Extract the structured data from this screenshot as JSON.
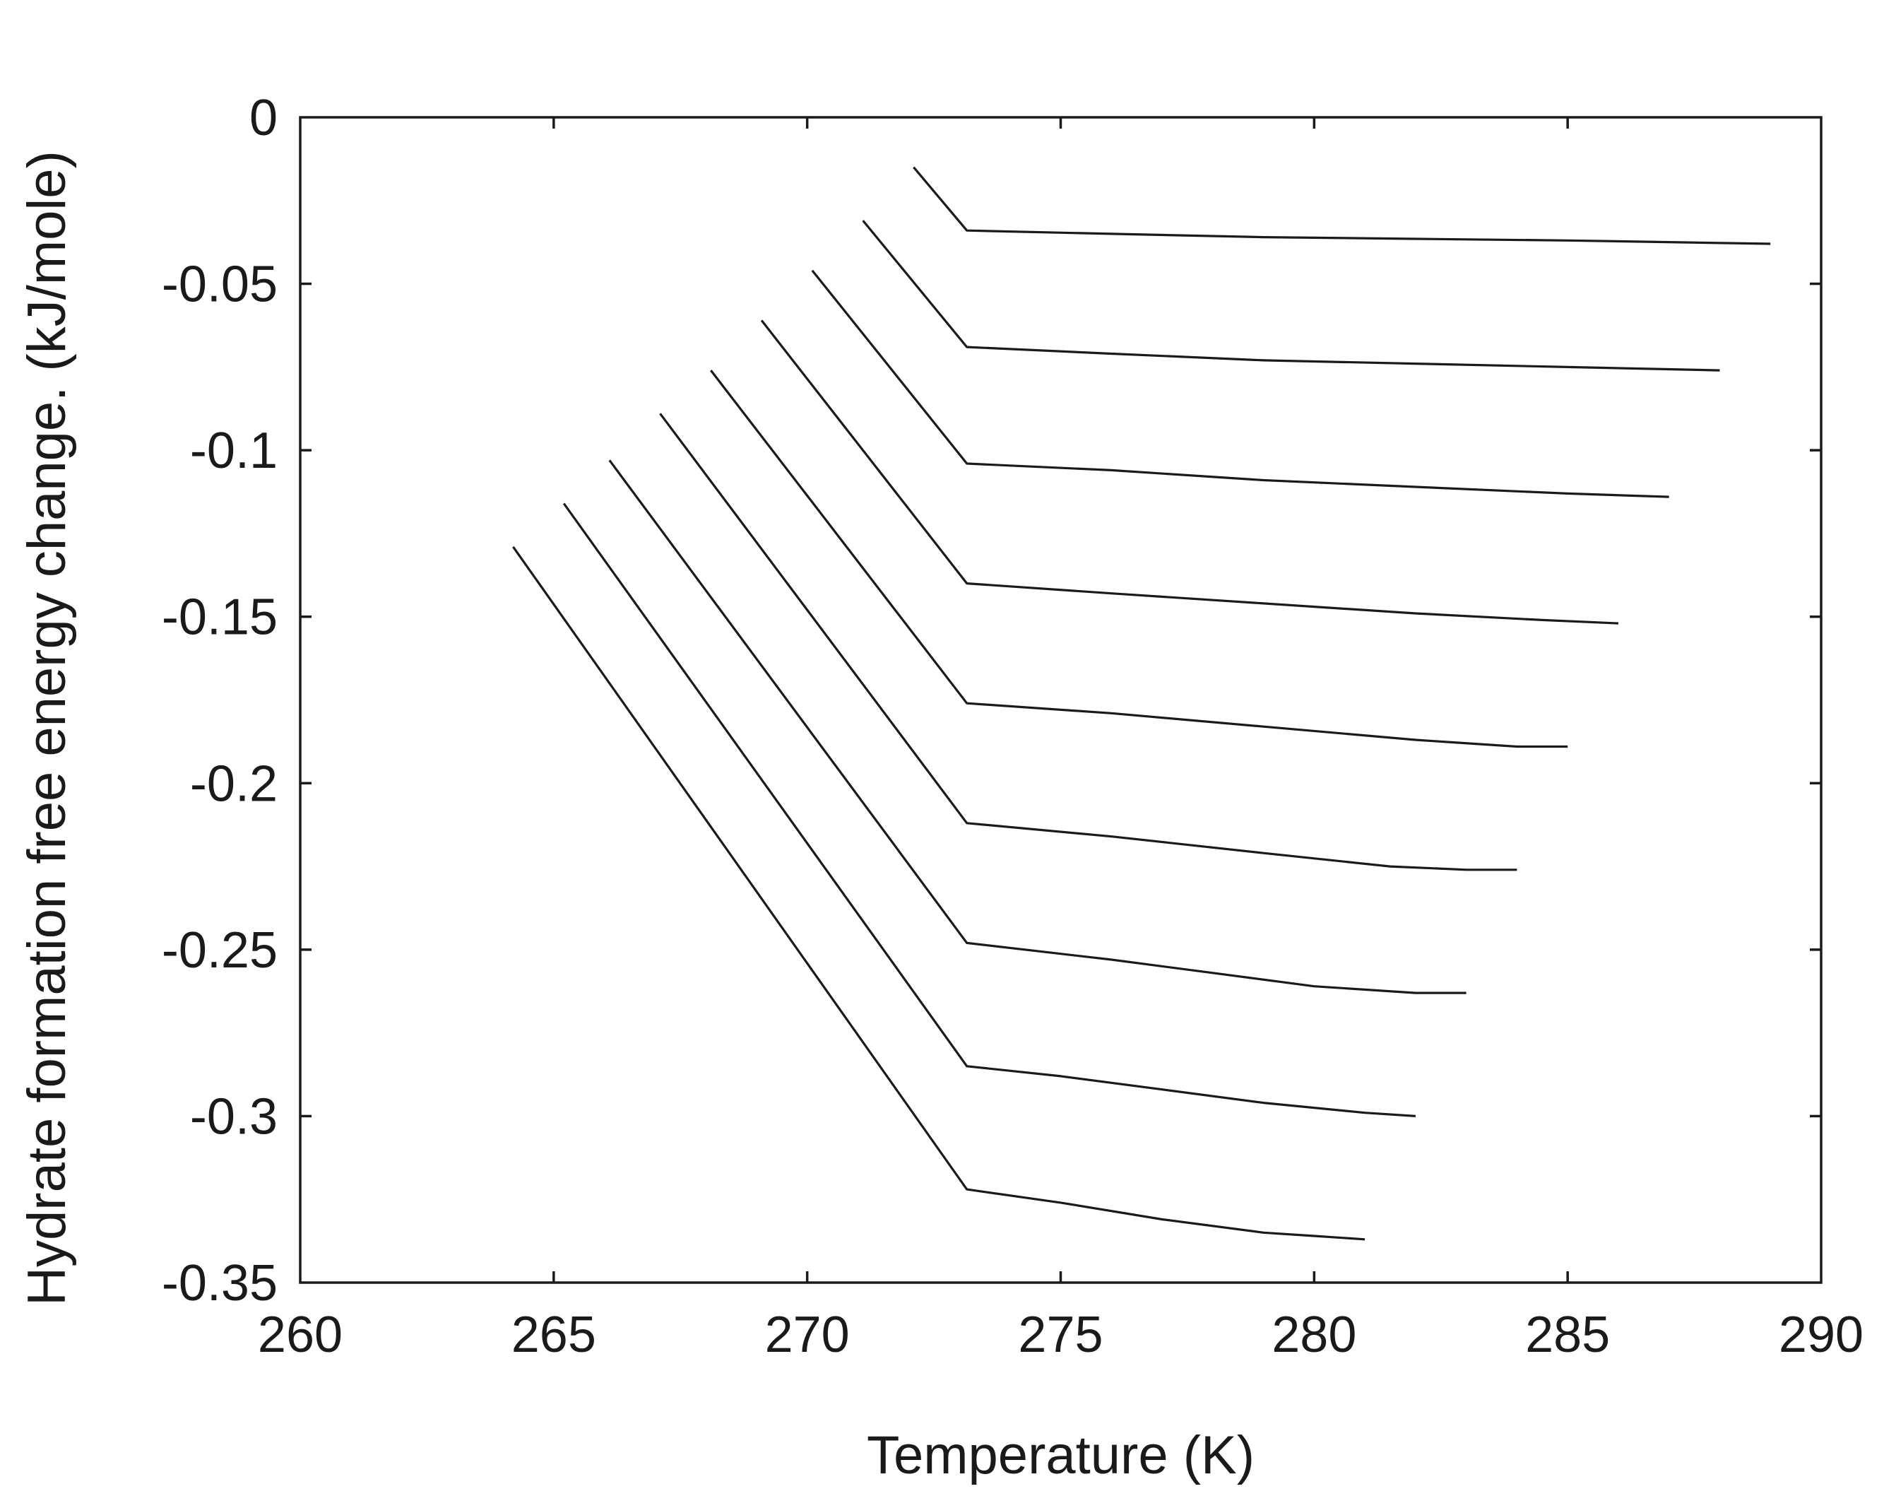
{
  "chart_data": {
    "type": "line",
    "title": "",
    "xlabel": "Temperature (K)",
    "ylabel": "Hydrate formation free energy change. (kJ/mole)",
    "xlim": [
      260,
      290
    ],
    "ylim": [
      -0.35,
      0
    ],
    "xticks": [
      260,
      265,
      270,
      275,
      280,
      285,
      290
    ],
    "yticks": [
      0,
      -0.05,
      -0.1,
      -0.15,
      -0.2,
      -0.25,
      -0.3,
      -0.35
    ],
    "xtick_labels": [
      "260",
      "265",
      "270",
      "275",
      "280",
      "285",
      "290"
    ],
    "ytick_labels": [
      "0",
      "-0.05",
      "-0.1",
      "-0.15",
      "-0.2",
      "-0.25",
      "-0.3",
      "-0.35"
    ],
    "grid": false,
    "legend": "none",
    "line_color": "#1a1a1a",
    "series": [
      {
        "x": [
          272.1,
          273.15,
          276,
          279,
          282,
          285,
          289
        ],
        "y": [
          -0.015,
          -0.034,
          -0.035,
          -0.036,
          -0.0365,
          -0.037,
          -0.038
        ]
      },
      {
        "x": [
          271.1,
          273.15,
          276,
          279,
          282,
          285,
          288
        ],
        "y": [
          -0.031,
          -0.069,
          -0.071,
          -0.073,
          -0.074,
          -0.075,
          -0.076
        ]
      },
      {
        "x": [
          270.1,
          273.15,
          276,
          279,
          282,
          285,
          287
        ],
        "y": [
          -0.046,
          -0.104,
          -0.106,
          -0.109,
          -0.111,
          -0.113,
          -0.114
        ]
      },
      {
        "x": [
          269.1,
          273.15,
          276,
          279,
          282,
          284.5,
          286
        ],
        "y": [
          -0.061,
          -0.14,
          -0.143,
          -0.146,
          -0.149,
          -0.151,
          -0.152
        ]
      },
      {
        "x": [
          268.1,
          273.15,
          276,
          279,
          282,
          284,
          285
        ],
        "y": [
          -0.076,
          -0.176,
          -0.179,
          -0.183,
          -0.187,
          -0.189,
          -0.189
        ]
      },
      {
        "x": [
          267.1,
          273.15,
          276,
          279,
          281.5,
          283,
          284
        ],
        "y": [
          -0.089,
          -0.212,
          -0.216,
          -0.221,
          -0.225,
          -0.226,
          -0.226
        ]
      },
      {
        "x": [
          266.1,
          273.15,
          276,
          278,
          280,
          282,
          283
        ],
        "y": [
          -0.103,
          -0.248,
          -0.253,
          -0.257,
          -0.261,
          -0.263,
          -0.263
        ]
      },
      {
        "x": [
          265.2,
          273.15,
          275,
          277,
          279,
          281,
          282
        ],
        "y": [
          -0.116,
          -0.285,
          -0.288,
          -0.292,
          -0.296,
          -0.299,
          -0.3
        ]
      },
      {
        "x": [
          264.2,
          273.15,
          275,
          277,
          279,
          280,
          281
        ],
        "y": [
          -0.129,
          -0.322,
          -0.326,
          -0.331,
          -0.335,
          -0.336,
          -0.337
        ]
      }
    ]
  }
}
